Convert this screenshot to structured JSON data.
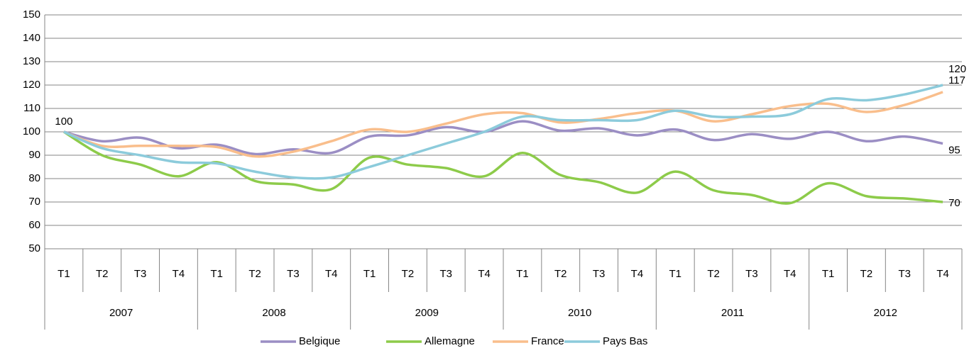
{
  "chart_data": {
    "type": "line",
    "categories": [
      "T1",
      "T2",
      "T3",
      "T4",
      "T1",
      "T2",
      "T3",
      "T4",
      "T1",
      "T2",
      "T3",
      "T4",
      "T1",
      "T2",
      "T3",
      "T4",
      "T1",
      "T2",
      "T3",
      "T4",
      "T1",
      "T2",
      "T3",
      "T4"
    ],
    "category_groups": [
      "2007",
      "2008",
      "2009",
      "2010",
      "2011",
      "2012"
    ],
    "series": [
      {
        "name": "Belgique",
        "color": "#9b8ec4",
        "label_points": [
          0,
          23
        ],
        "values": [
          100,
          96,
          97.5,
          93,
          94.5,
          90.5,
          92.5,
          91,
          98,
          98.5,
          102,
          100,
          104.5,
          100.5,
          101.5,
          98.5,
          101,
          96.5,
          99,
          97,
          100,
          96,
          98,
          95
        ]
      },
      {
        "name": "Allemagne",
        "color": "#8dcb4a",
        "label_points": [
          23
        ],
        "values": [
          100,
          90,
          86,
          81,
          87,
          79,
          77.5,
          75.5,
          89,
          86,
          84.5,
          81,
          91,
          81.5,
          78.5,
          74,
          83,
          75,
          73,
          69.5,
          78,
          72.5,
          71.5,
          70
        ]
      },
      {
        "name": "France",
        "color": "#f9be8c",
        "label_points": [
          23
        ],
        "values": [
          100,
          94,
          94,
          94,
          93.5,
          89.5,
          91.5,
          96,
          101,
          100,
          103.5,
          107.5,
          108,
          104,
          105.5,
          108,
          109,
          104.5,
          107.5,
          111,
          112,
          108.5,
          111.5,
          117
        ]
      },
      {
        "name": "Pays Bas",
        "color": "#8ccbdb",
        "label_points": [
          23
        ],
        "values": [
          100,
          93,
          90,
          87,
          86.5,
          83,
          80.5,
          80.5,
          85,
          90,
          95,
          100,
          106.5,
          105,
          105,
          105,
          109,
          106.5,
          106.5,
          107.5,
          114,
          113.5,
          116,
          120
        ]
      }
    ],
    "ylim": [
      50,
      150
    ],
    "yticks": [
      50,
      60,
      70,
      80,
      90,
      100,
      110,
      120,
      130,
      140,
      150
    ],
    "grid": true,
    "legend": "bottom"
  }
}
